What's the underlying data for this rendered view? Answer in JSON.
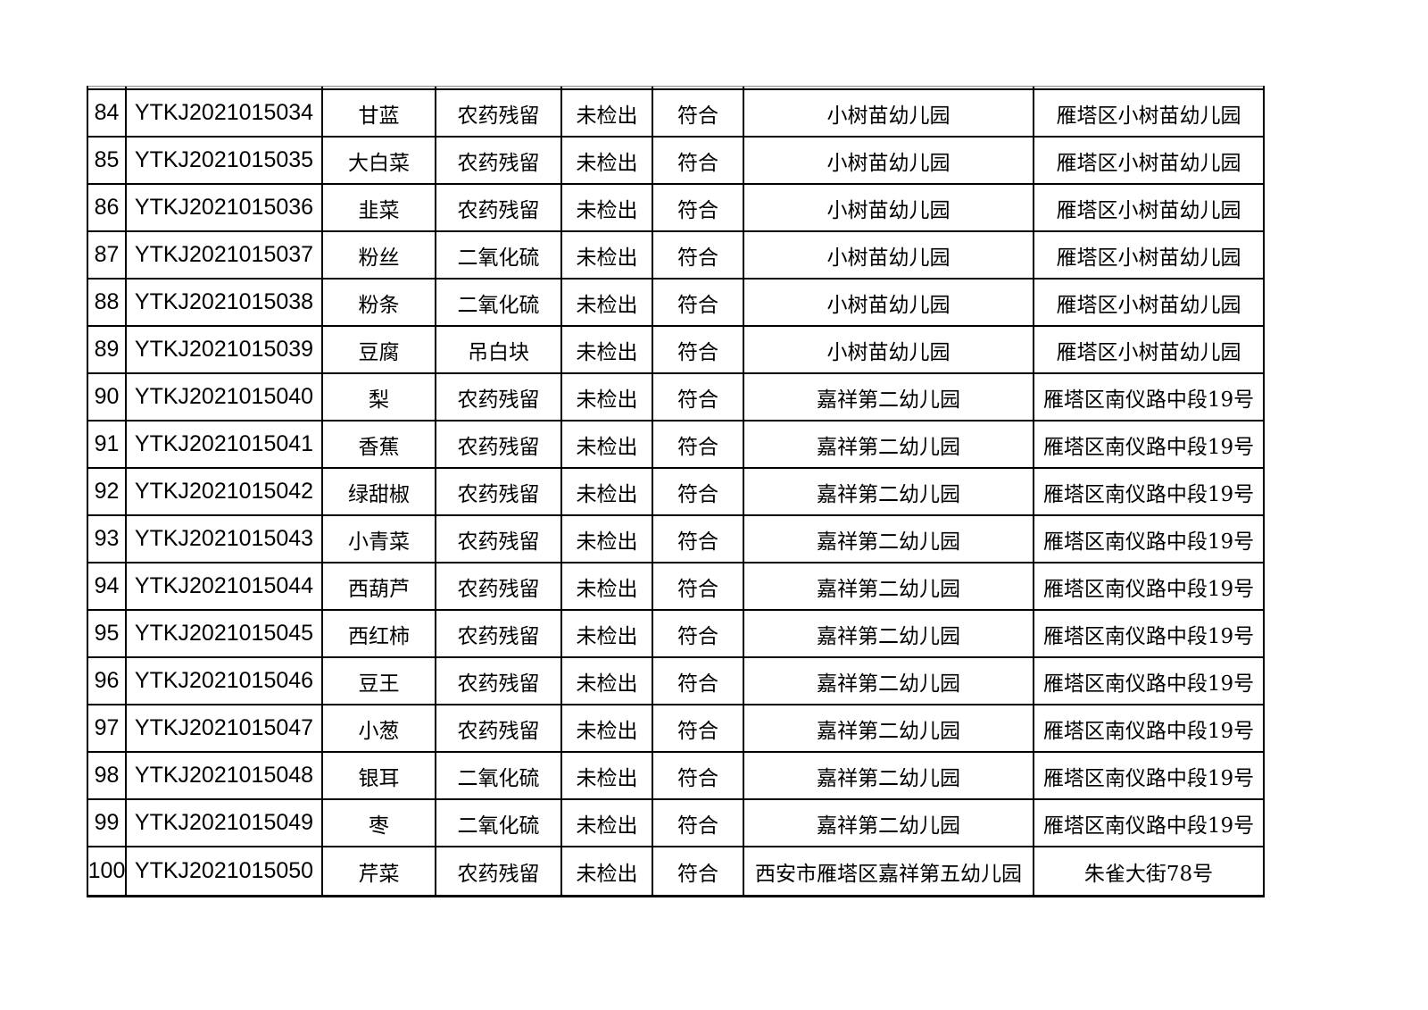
{
  "page": {
    "background_color": "#ffffff",
    "table_border_color": "#000000",
    "text_color": "#000000"
  },
  "table": {
    "rows": [
      {
        "num": "84",
        "code": "YTKJ2021015034",
        "name": "甘蓝",
        "item": "农药残留",
        "result": "未检出",
        "conclusion": "符合",
        "unit": "小树苗幼儿园",
        "address": "雁塔区小树苗幼儿园"
      },
      {
        "num": "85",
        "code": "YTKJ2021015035",
        "name": "大白菜",
        "item": "农药残留",
        "result": "未检出",
        "conclusion": "符合",
        "unit": "小树苗幼儿园",
        "address": "雁塔区小树苗幼儿园"
      },
      {
        "num": "86",
        "code": "YTKJ2021015036",
        "name": "韭菜",
        "item": "农药残留",
        "result": "未检出",
        "conclusion": "符合",
        "unit": "小树苗幼儿园",
        "address": "雁塔区小树苗幼儿园"
      },
      {
        "num": "87",
        "code": "YTKJ2021015037",
        "name": "粉丝",
        "item": "二氧化硫",
        "result": "未检出",
        "conclusion": "符合",
        "unit": "小树苗幼儿园",
        "address": "雁塔区小树苗幼儿园"
      },
      {
        "num": "88",
        "code": "YTKJ2021015038",
        "name": "粉条",
        "item": "二氧化硫",
        "result": "未检出",
        "conclusion": "符合",
        "unit": "小树苗幼儿园",
        "address": "雁塔区小树苗幼儿园"
      },
      {
        "num": "89",
        "code": "YTKJ2021015039",
        "name": "豆腐",
        "item": "吊白块",
        "result": "未检出",
        "conclusion": "符合",
        "unit": "小树苗幼儿园",
        "address": "雁塔区小树苗幼儿园"
      },
      {
        "num": "90",
        "code": "YTKJ2021015040",
        "name": "梨",
        "item": "农药残留",
        "result": "未检出",
        "conclusion": "符合",
        "unit": "嘉祥第二幼儿园",
        "address": "雁塔区南仪路中段19号"
      },
      {
        "num": "91",
        "code": "YTKJ2021015041",
        "name": "香蕉",
        "item": "农药残留",
        "result": "未检出",
        "conclusion": "符合",
        "unit": "嘉祥第二幼儿园",
        "address": "雁塔区南仪路中段19号"
      },
      {
        "num": "92",
        "code": "YTKJ2021015042",
        "name": "绿甜椒",
        "item": "农药残留",
        "result": "未检出",
        "conclusion": "符合",
        "unit": "嘉祥第二幼儿园",
        "address": "雁塔区南仪路中段19号"
      },
      {
        "num": "93",
        "code": "YTKJ2021015043",
        "name": "小青菜",
        "item": "农药残留",
        "result": "未检出",
        "conclusion": "符合",
        "unit": "嘉祥第二幼儿园",
        "address": "雁塔区南仪路中段19号"
      },
      {
        "num": "94",
        "code": "YTKJ2021015044",
        "name": "西葫芦",
        "item": "农药残留",
        "result": "未检出",
        "conclusion": "符合",
        "unit": "嘉祥第二幼儿园",
        "address": "雁塔区南仪路中段19号"
      },
      {
        "num": "95",
        "code": "YTKJ2021015045",
        "name": "西红柿",
        "item": "农药残留",
        "result": "未检出",
        "conclusion": "符合",
        "unit": "嘉祥第二幼儿园",
        "address": "雁塔区南仪路中段19号"
      },
      {
        "num": "96",
        "code": "YTKJ2021015046",
        "name": "豆王",
        "item": "农药残留",
        "result": "未检出",
        "conclusion": "符合",
        "unit": "嘉祥第二幼儿园",
        "address": "雁塔区南仪路中段19号"
      },
      {
        "num": "97",
        "code": "YTKJ2021015047",
        "name": "小葱",
        "item": "农药残留",
        "result": "未检出",
        "conclusion": "符合",
        "unit": "嘉祥第二幼儿园",
        "address": "雁塔区南仪路中段19号"
      },
      {
        "num": "98",
        "code": "YTKJ2021015048",
        "name": "银耳",
        "item": "二氧化硫",
        "result": "未检出",
        "conclusion": "符合",
        "unit": "嘉祥第二幼儿园",
        "address": "雁塔区南仪路中段19号"
      },
      {
        "num": "99",
        "code": "YTKJ2021015049",
        "name": "枣",
        "item": "二氧化硫",
        "result": "未检出",
        "conclusion": "符合",
        "unit": "嘉祥第二幼儿园",
        "address": "雁塔区南仪路中段19号"
      },
      {
        "num": "100",
        "code": "YTKJ2021015050",
        "name": "芹菜",
        "item": "农药残留",
        "result": "未检出",
        "conclusion": "符合",
        "unit": "西安市雁塔区嘉祥第五幼儿园",
        "address": "朱雀大街78号"
      }
    ]
  }
}
